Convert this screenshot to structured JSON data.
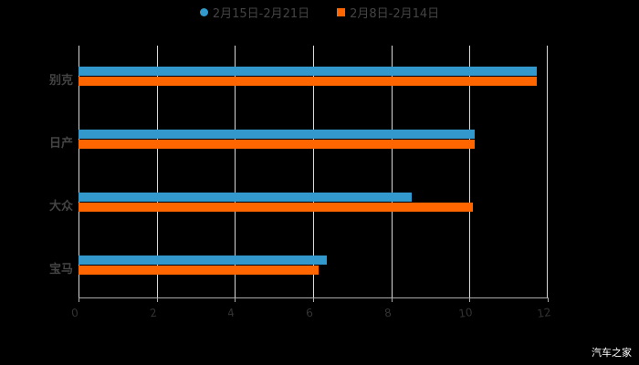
{
  "chart_data": {
    "type": "bar",
    "orientation": "horizontal",
    "title": "",
    "categories": [
      "别克",
      "日产",
      "大众",
      "宝马"
    ],
    "series": [
      {
        "name": "2月15日-2月21日",
        "color": "#3399cc",
        "values": [
          11.73,
          10.14,
          8.53,
          6.36
        ]
      },
      {
        "name": "2月8日-2月14日",
        "color": "#ff6600",
        "values": [
          11.73,
          10.14,
          10.09,
          6.14
        ]
      }
    ],
    "xlabel": "",
    "ylabel": "",
    "xlim": [
      0,
      12
    ],
    "xticks": [
      "0",
      "2",
      "4",
      "6",
      "8",
      "10",
      "12"
    ],
    "grid": "vertical",
    "legend_position": "top"
  },
  "legend": {
    "s1": "2月15日-2月21日",
    "s2": "2月8日-2月14日"
  },
  "watermark": "汽车之家"
}
